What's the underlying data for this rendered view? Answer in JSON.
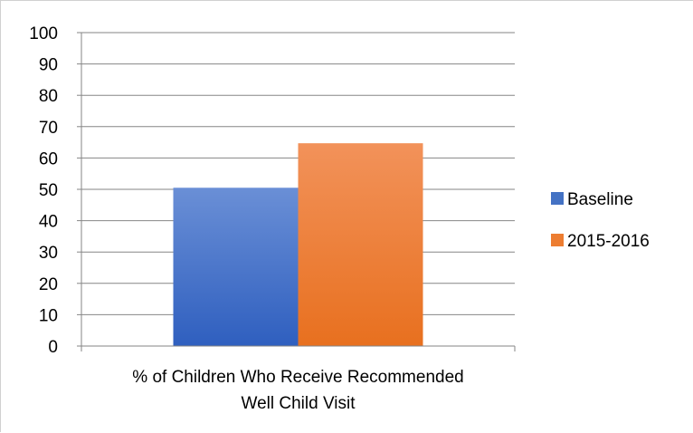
{
  "chart_data": {
    "type": "bar",
    "categories": [
      "% of Children Who Receive Recommended Well Child Visit"
    ],
    "category_label_lines": [
      "% of Children Who Receive Recommended",
      "Well Child Visit"
    ],
    "series": [
      {
        "name": "Baseline",
        "values": [
          50.5
        ],
        "color": "#4472c4"
      },
      {
        "name": "2015-2016",
        "values": [
          64.7
        ],
        "color": "#ed7d31"
      }
    ],
    "title": "",
    "xlabel": "",
    "ylabel": "",
    "ylim": [
      0,
      100
    ],
    "yticks": [
      0,
      10,
      20,
      30,
      40,
      50,
      60,
      70,
      80,
      90,
      100
    ],
    "grid": true,
    "legend_position": "right"
  }
}
